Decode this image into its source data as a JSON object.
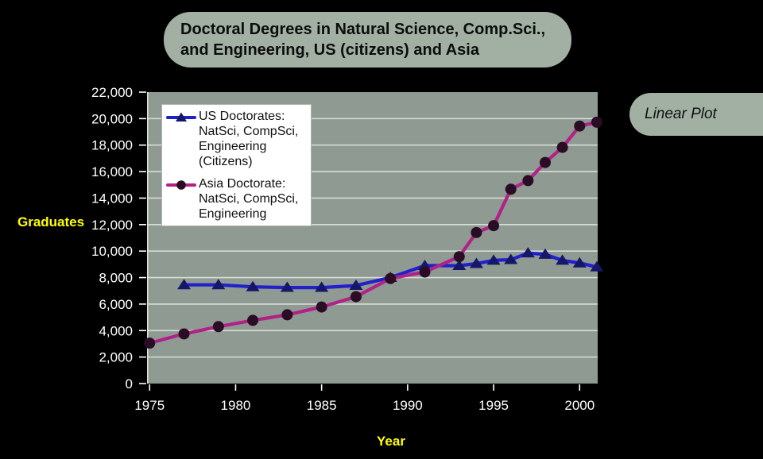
{
  "page": {
    "background": "#000000",
    "panel_color": "#a2b0a4"
  },
  "title_box": {
    "text": "Doctoral Degrees in Natural Science, Comp.Sci.,\nand Engineering, US (citizens) and Asia"
  },
  "badge": {
    "label": "Linear Plot"
  },
  "chart_data": {
    "type": "line",
    "title": "Doctoral Degrees in Natural Science, Comp.Sci., and Engineering, US (citizens) and Asia",
    "xlabel": "Year",
    "ylabel": "Graduates",
    "xlim": [
      1974.85,
      2001.05
    ],
    "ylim": [
      0,
      22000
    ],
    "x_ticks": [
      1975,
      1980,
      1985,
      1990,
      1995,
      2000
    ],
    "y_ticks": [
      0,
      2000,
      4000,
      6000,
      8000,
      10000,
      12000,
      14000,
      16000,
      18000,
      20000,
      22000
    ],
    "grid": "horizontal",
    "legend_position": "upper-left",
    "plot_bg": "#8e9a92",
    "grid_color": "#d8ded6",
    "tick_text_color": "#ffffff",
    "axis_label_color": "#ffff00",
    "series": [
      {
        "id": "us",
        "legend_label": "US Doctorates:\nNatSci, CompSci,\nEngineering\n(Citizens)",
        "line_color": "#2121cc",
        "marker": "triangle",
        "marker_color": "#171768",
        "points": [
          [
            1977,
            7450
          ],
          [
            1979,
            7450
          ],
          [
            1981,
            7300
          ],
          [
            1983,
            7250
          ],
          [
            1985,
            7250
          ],
          [
            1987,
            7400
          ],
          [
            1989,
            8000
          ],
          [
            1991,
            8900
          ],
          [
            1993,
            8900
          ],
          [
            1994,
            9050
          ],
          [
            1995,
            9300
          ],
          [
            1996,
            9350
          ],
          [
            1997,
            9850
          ],
          [
            1998,
            9750
          ],
          [
            1999,
            9300
          ],
          [
            2000,
            9100
          ],
          [
            2001,
            8800
          ]
        ]
      },
      {
        "id": "asia",
        "legend_label": "Asia Doctorate:\nNatSci, CompSci,\nEngineering",
        "line_color": "#b02287",
        "marker": "circle",
        "marker_color": "#2a0d24",
        "points": [
          [
            1975,
            3050
          ],
          [
            1977,
            3750
          ],
          [
            1979,
            4300
          ],
          [
            1981,
            4770
          ],
          [
            1983,
            5190
          ],
          [
            1985,
            5780
          ],
          [
            1987,
            6560
          ],
          [
            1989,
            7930
          ],
          [
            1991,
            8420
          ],
          [
            1993,
            9580
          ],
          [
            1994,
            11400
          ],
          [
            1995,
            11920
          ],
          [
            1996,
            14670
          ],
          [
            1997,
            15320
          ],
          [
            1998,
            16690
          ],
          [
            1999,
            17830
          ],
          [
            2000,
            19440
          ],
          [
            2001,
            19730
          ]
        ]
      }
    ]
  }
}
